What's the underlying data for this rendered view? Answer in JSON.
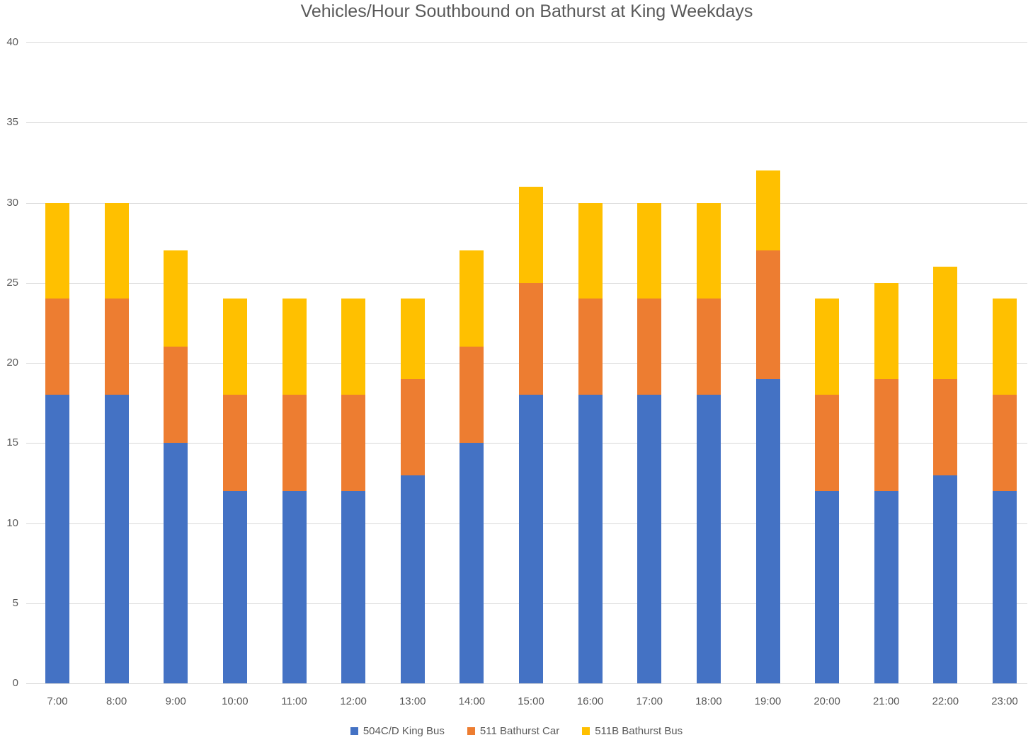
{
  "chart_data": {
    "type": "bar",
    "stacked": true,
    "title": "Vehicles/Hour Southbound on Bathurst at King Weekdays",
    "categories": [
      "7:00",
      "8:00",
      "9:00",
      "10:00",
      "11:00",
      "12:00",
      "13:00",
      "14:00",
      "15:00",
      "16:00",
      "17:00",
      "18:00",
      "19:00",
      "20:00",
      "21:00",
      "22:00",
      "23:00"
    ],
    "series": [
      {
        "name": "504C/D King Bus",
        "color": "#4472C4",
        "values": [
          18,
          18,
          15,
          12,
          12,
          12,
          13,
          15,
          18,
          18,
          18,
          18,
          19,
          12,
          12,
          13,
          12
        ]
      },
      {
        "name": "511 Bathurst Car",
        "color": "#ED7D31",
        "values": [
          6,
          6,
          6,
          6,
          6,
          6,
          6,
          6,
          7,
          6,
          6,
          6,
          8,
          6,
          7,
          6,
          6
        ]
      },
      {
        "name": "511B Bathurst Bus",
        "color": "#FFC000",
        "values": [
          6,
          6,
          6,
          6,
          6,
          6,
          5,
          6,
          6,
          6,
          6,
          6,
          5,
          6,
          6,
          7,
          6
        ]
      }
    ],
    "ylim": [
      0,
      40
    ],
    "yticks": [
      0,
      5,
      10,
      15,
      20,
      25,
      30,
      35,
      40
    ],
    "xlabel": "",
    "ylabel": "",
    "grid": true,
    "gridline_color": "#D9D9D9",
    "text_color": "#595959",
    "background_color": "#FFFFFF",
    "legend_position": "bottom"
  }
}
